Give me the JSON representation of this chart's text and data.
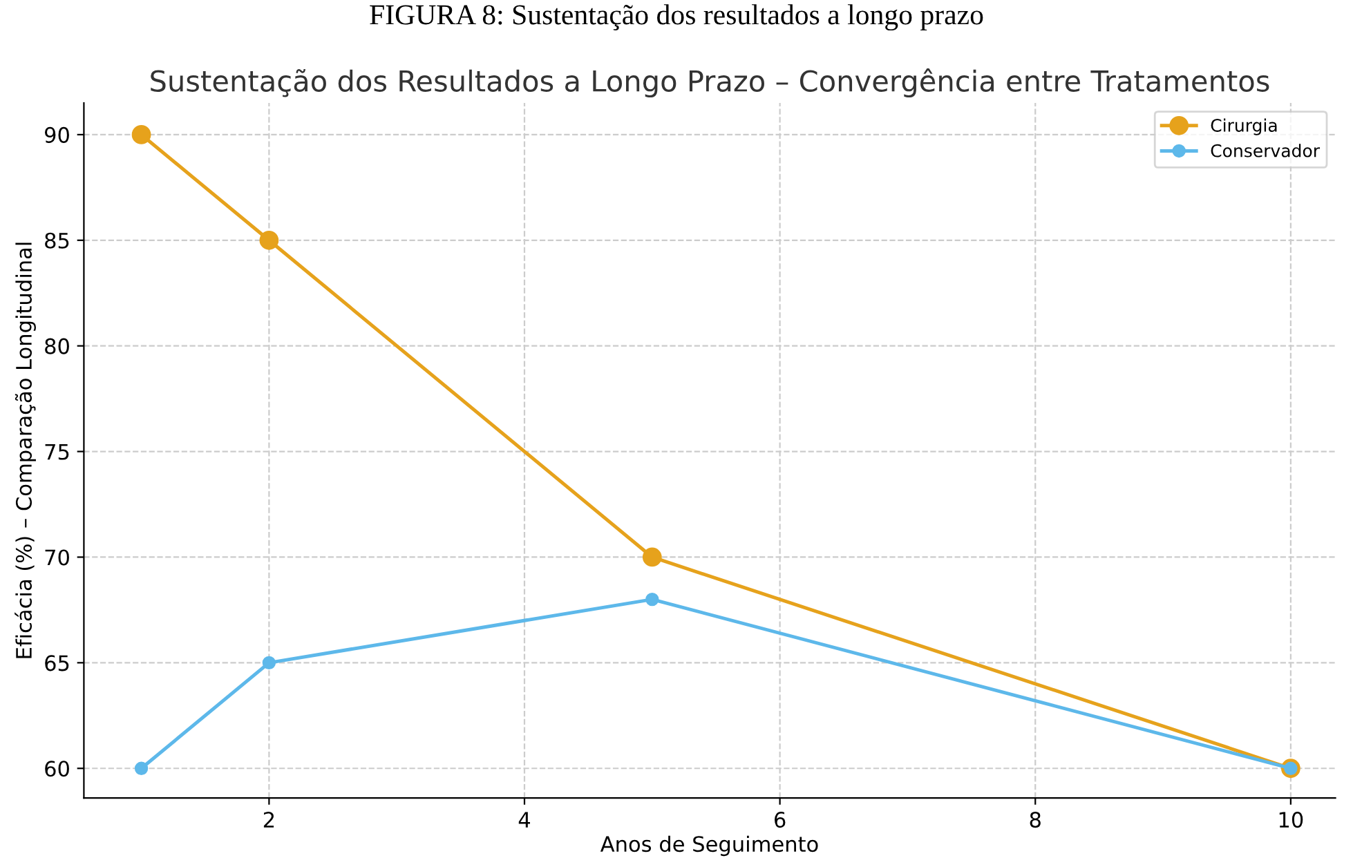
{
  "chart_data": {
    "type": "line",
    "title": "Sustentação dos Resultados a Longo Prazo – Convergência entre Tratamentos",
    "subtitle": "FIGURA 8: Sustentação dos resultados a longo prazo",
    "xlabel": "Anos de Seguimento",
    "ylabel": "Eficácia (%) – Comparação Longitudinal",
    "x": [
      1,
      2,
      5,
      10
    ],
    "series": [
      {
        "name": "Cirurgia",
        "color": "#e6a21c",
        "values": [
          90,
          85,
          70,
          60
        ]
      },
      {
        "name": "Conservador",
        "color": "#5db8ea",
        "values": [
          60,
          65,
          68,
          60
        ]
      }
    ],
    "xlim": [
      0.55,
      10.35
    ],
    "ylim": [
      58.6,
      91.5
    ],
    "xticks": [
      2,
      4,
      6,
      8,
      10
    ],
    "yticks": [
      60,
      65,
      70,
      75,
      80,
      85,
      90
    ],
    "grid": true,
    "legend": "top right",
    "marker": "circle",
    "line_style": "solid"
  }
}
